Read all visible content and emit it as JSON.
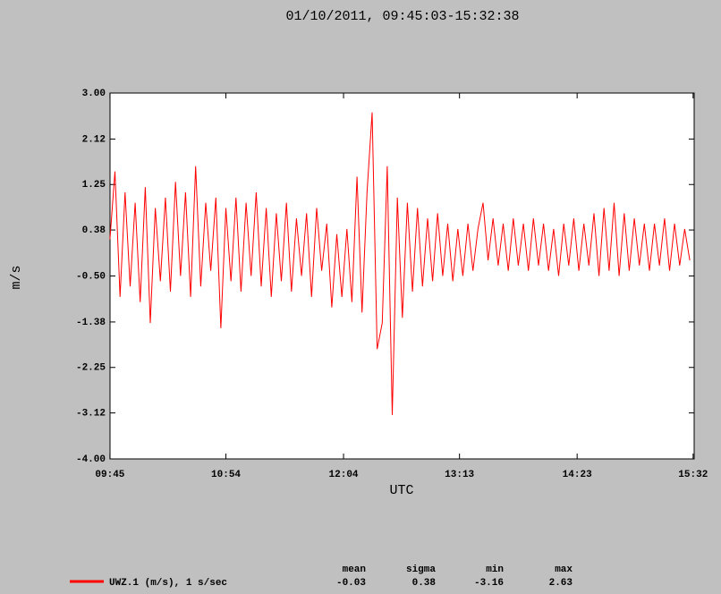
{
  "chart_data": {
    "type": "line",
    "title": "01/10/2011, 09:45:03-15:32:38",
    "xlabel": "UTC",
    "ylabel": "m/s",
    "xlim": [
      "09:45:03",
      "15:32:38"
    ],
    "xticks": [
      "09:45",
      "10:54",
      "12:04",
      "13:13",
      "14:23",
      "15:32"
    ],
    "ylim": [
      -4,
      3
    ],
    "yticks": [
      {
        "value": 3,
        "label": "3.00"
      },
      2.12,
      1.25,
      0.38,
      {
        "value": -0.5,
        "label": "-0.50"
      },
      -1.38,
      -2.25,
      -3.12,
      {
        "value": -4,
        "label": "-4.00"
      }
    ],
    "x": [
      "09:45",
      "09:48",
      "09:51",
      "09:54",
      "09:57",
      "10:00",
      "10:03",
      "10:06",
      "10:09",
      "10:12",
      "10:15",
      "10:18",
      "10:21",
      "10:24",
      "10:27",
      "10:30",
      "10:33",
      "10:36",
      "10:39",
      "10:42",
      "10:45",
      "10:48",
      "10:51",
      "10:54",
      "10:57",
      "11:00",
      "11:03",
      "11:06",
      "11:09",
      "11:12",
      "11:15",
      "11:18",
      "11:21",
      "11:24",
      "11:27",
      "11:30",
      "11:33",
      "11:36",
      "11:39",
      "11:42",
      "11:45",
      "11:48",
      "11:51",
      "11:54",
      "11:57",
      "12:00",
      "12:03",
      "12:06",
      "12:09",
      "12:12",
      "12:15",
      "12:18",
      "12:21",
      "12:24",
      "12:27",
      "12:30",
      "12:33",
      "12:36",
      "12:39",
      "12:42",
      "12:45",
      "12:48",
      "12:51",
      "12:54",
      "12:57",
      "13:00",
      "13:03",
      "13:06",
      "13:09",
      "13:12",
      "13:15",
      "13:18",
      "13:21",
      "13:24",
      "13:27",
      "13:30",
      "13:33",
      "13:36",
      "13:39",
      "13:42",
      "13:45",
      "13:48",
      "13:51",
      "13:54",
      "13:57",
      "14:00",
      "14:03",
      "14:06",
      "14:09",
      "14:12",
      "14:15",
      "14:18",
      "14:21",
      "14:24",
      "14:27",
      "14:30",
      "14:33",
      "14:36",
      "14:39",
      "14:42",
      "14:45",
      "14:48",
      "14:51",
      "14:54",
      "14:57",
      "15:00",
      "15:03",
      "15:06",
      "15:09",
      "15:12",
      "15:15",
      "15:18",
      "15:21",
      "15:24",
      "15:27",
      "15:30"
    ],
    "series": [
      {
        "name": "UWZ.1 (m/s), 1 s/sec",
        "color": "#ff0000",
        "values": [
          0.2,
          1.5,
          -0.9,
          1.1,
          -0.7,
          0.9,
          -1.0,
          1.2,
          -1.4,
          0.8,
          -0.6,
          1.0,
          -0.8,
          1.3,
          -0.5,
          1.1,
          -0.9,
          1.6,
          -0.7,
          0.9,
          -0.4,
          1.0,
          -1.5,
          0.8,
          -0.6,
          1.0,
          -0.8,
          0.9,
          -0.5,
          1.1,
          -0.7,
          0.8,
          -0.9,
          0.7,
          -0.6,
          0.9,
          -0.8,
          0.6,
          -0.5,
          0.7,
          -0.9,
          0.8,
          -0.4,
          0.5,
          -1.1,
          0.3,
          -0.9,
          0.4,
          -1.0,
          1.4,
          -1.2,
          1.1,
          2.63,
          -1.9,
          -1.4,
          1.6,
          -3.16,
          1.0,
          -1.3,
          0.9,
          -0.8,
          0.8,
          -0.7,
          0.6,
          -0.6,
          0.7,
          -0.5,
          0.5,
          -0.6,
          0.4,
          -0.5,
          0.5,
          -0.4,
          0.4,
          0.9,
          -0.2,
          0.6,
          -0.3,
          0.5,
          -0.4,
          0.6,
          -0.3,
          0.5,
          -0.4,
          0.6,
          -0.3,
          0.5,
          -0.4,
          0.4,
          -0.5,
          0.5,
          -0.3,
          0.6,
          -0.4,
          0.5,
          -0.3,
          0.7,
          -0.5,
          0.8,
          -0.4,
          0.9,
          -0.5,
          0.7,
          -0.4,
          0.6,
          -0.3,
          0.5,
          -0.4,
          0.5,
          -0.3,
          0.6,
          -0.4,
          0.5,
          -0.3,
          0.4,
          -0.2
        ]
      }
    ],
    "stats": {
      "headers": [
        "mean",
        "sigma",
        "min",
        "max"
      ],
      "values": [
        "-0.03",
        "0.38",
        "-3.16",
        "2.63"
      ]
    }
  }
}
